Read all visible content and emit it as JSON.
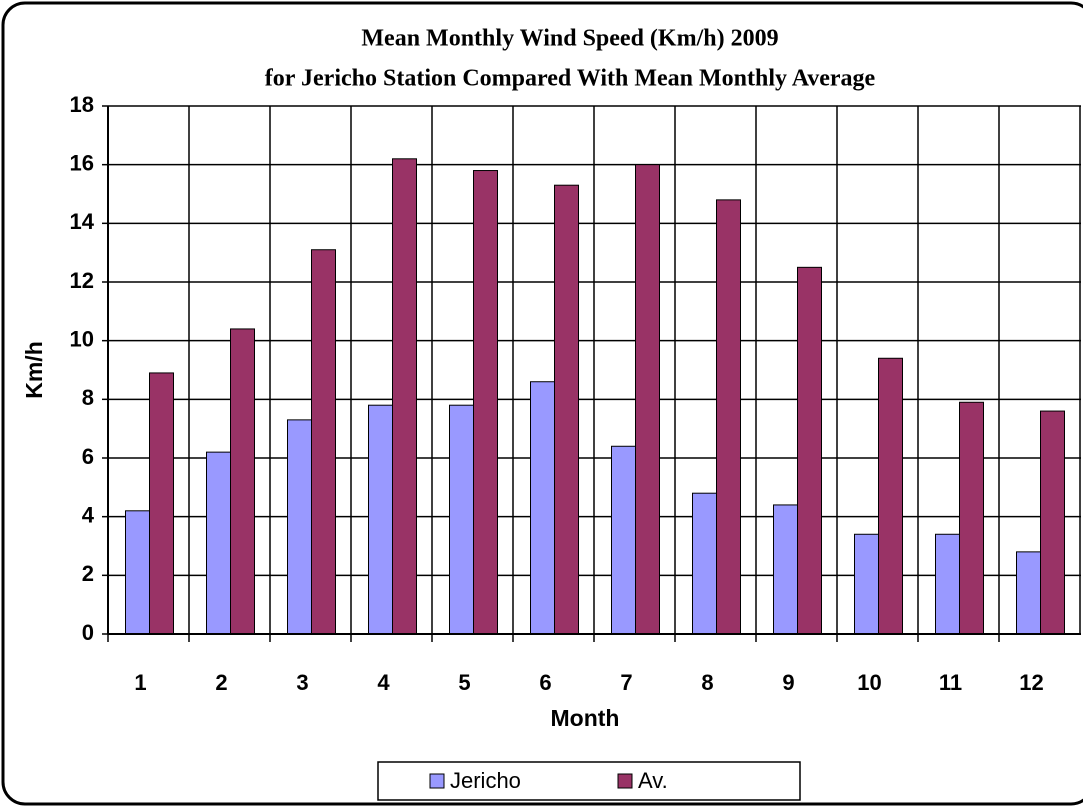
{
  "chart_data": {
    "type": "bar",
    "title": "Mean Monthly Wind Speed (Km/h) 2009",
    "subtitle": "for Jericho Station Compared With Mean Monthly Average",
    "x_label": "Month",
    "y_label": "Km/h",
    "categories": [
      "1",
      "2",
      "3",
      "4",
      "5",
      "6",
      "7",
      "8",
      "9",
      "10",
      "11",
      "12"
    ],
    "series": [
      {
        "name": "Jericho",
        "color": "#9999ff",
        "values": [
          4.2,
          6.2,
          7.3,
          7.8,
          7.8,
          8.6,
          6.4,
          4.8,
          4.4,
          3.4,
          3.4,
          2.8
        ]
      },
      {
        "name": "Av.",
        "color": "#993366",
        "values": [
          8.9,
          10.4,
          13.1,
          16.2,
          15.8,
          15.3,
          16.0,
          14.8,
          12.5,
          9.4,
          7.9,
          7.6
        ]
      }
    ],
    "ylim": [
      0,
      18
    ],
    "yticks": [
      0,
      2,
      4,
      6,
      8,
      10,
      12,
      14,
      16,
      18
    ],
    "grid": true,
    "legend": "bottom"
  }
}
